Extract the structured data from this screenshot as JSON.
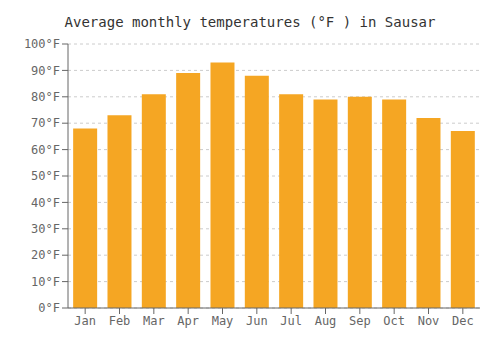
{
  "chart_data": {
    "type": "bar",
    "title": "Average monthly temperatures (°F ) in Sausar",
    "categories": [
      "Jan",
      "Feb",
      "Mar",
      "Apr",
      "May",
      "Jun",
      "Jul",
      "Aug",
      "Sep",
      "Oct",
      "Nov",
      "Dec"
    ],
    "values": [
      68,
      73,
      81,
      89,
      93,
      88,
      81,
      79,
      80,
      79,
      72,
      67
    ],
    "color": "#F5A623",
    "ylim": [
      0,
      100
    ],
    "yticks": [
      {
        "value": 0,
        "label": "0°F"
      },
      {
        "value": 10,
        "label": "10°F"
      },
      {
        "value": 20,
        "label": "20°F"
      },
      {
        "value": 30,
        "label": "30°F"
      },
      {
        "value": 40,
        "label": "40°F"
      },
      {
        "value": 50,
        "label": "50°F"
      },
      {
        "value": 60,
        "label": "60°F"
      },
      {
        "value": 70,
        "label": "70°F"
      },
      {
        "value": 80,
        "label": "80°F"
      },
      {
        "value": 90,
        "label": "90°F"
      },
      {
        "value": 100,
        "label": "100°F"
      }
    ],
    "grid": true
  }
}
